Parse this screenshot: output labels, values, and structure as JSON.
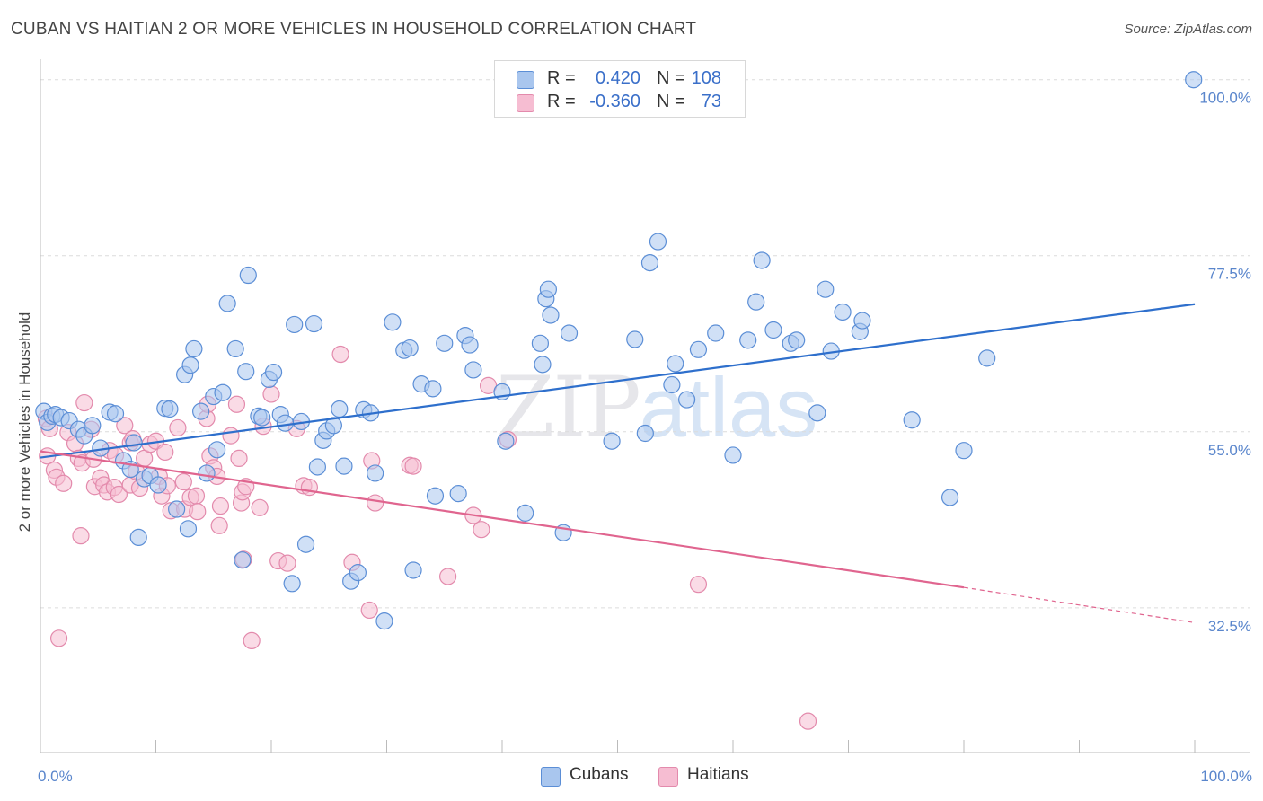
{
  "chart_data": {
    "type": "scatter",
    "title": "CUBAN VS HAITIAN 2 OR MORE VEHICLES IN HOUSEHOLD CORRELATION CHART",
    "source": "Source: ZipAtlas.com",
    "ylabel": "2 or more Vehicles in Household",
    "xlabel": "",
    "xlim": [
      0,
      100
    ],
    "ylim": [
      14,
      101
    ],
    "x_tick_labels": [
      "0.0%",
      "100.0%"
    ],
    "y_ticks": [
      {
        "value": 32.5,
        "label": "32.5%"
      },
      {
        "value": 55.0,
        "label": "55.0%"
      },
      {
        "value": 77.5,
        "label": "77.5%"
      },
      {
        "value": 100.0,
        "label": "100.0%"
      }
    ],
    "grid": true,
    "watermark": {
      "zip": "ZIP",
      "atlas": "atlas"
    },
    "stats": [
      {
        "r_label": "R =",
        "r_value": "0.420",
        "n_label": "N =",
        "n_value": "108"
      },
      {
        "r_label": "R =",
        "r_value": "-0.360",
        "n_label": "N =",
        "n_value": "73"
      }
    ],
    "legend": [
      "Cubans",
      "Haitians"
    ],
    "colors": {
      "cubans_fill": "#a9c6ee",
      "cubans_stroke": "#5b8ed6",
      "cubans_line": "#2e6fcc",
      "haitians_fill": "#f6bdd2",
      "haitians_stroke": "#e38aac",
      "haitians_line": "#e0658f"
    },
    "series": [
      {
        "name": "Cubans",
        "trend": {
          "x0": 0,
          "y0": 51.7,
          "x1": 100,
          "y1": 71.3
        },
        "points": [
          [
            0.3,
            57.6
          ],
          [
            0.6,
            56.2
          ],
          [
            1.0,
            57.0
          ],
          [
            1.3,
            57.2
          ],
          [
            1.8,
            56.8
          ],
          [
            2.5,
            56.4
          ],
          [
            3.3,
            55.3
          ],
          [
            3.8,
            54.5
          ],
          [
            4.5,
            55.8
          ],
          [
            5.2,
            52.9
          ],
          [
            6.0,
            57.5
          ],
          [
            6.5,
            57.3
          ],
          [
            7.2,
            51.3
          ],
          [
            7.8,
            50.2
          ],
          [
            8.1,
            53.6
          ],
          [
            8.5,
            41.5
          ],
          [
            9.0,
            49.0
          ],
          [
            9.5,
            49.4
          ],
          [
            10.2,
            48.2
          ],
          [
            10.8,
            58.0
          ],
          [
            11.2,
            57.9
          ],
          [
            11.8,
            45.1
          ],
          [
            12.5,
            62.3
          ],
          [
            12.8,
            42.6
          ],
          [
            13.0,
            63.5
          ],
          [
            13.3,
            65.6
          ],
          [
            13.9,
            57.6
          ],
          [
            14.4,
            49.7
          ],
          [
            15.0,
            59.5
          ],
          [
            15.3,
            52.7
          ],
          [
            15.8,
            60.0
          ],
          [
            16.2,
            71.4
          ],
          [
            16.9,
            65.6
          ],
          [
            17.5,
            38.6
          ],
          [
            17.8,
            62.7
          ],
          [
            18.0,
            75.0
          ],
          [
            18.9,
            57.0
          ],
          [
            19.2,
            56.8
          ],
          [
            19.8,
            61.7
          ],
          [
            20.2,
            62.6
          ],
          [
            20.8,
            57.2
          ],
          [
            21.2,
            56.1
          ],
          [
            21.8,
            35.6
          ],
          [
            22.0,
            68.7
          ],
          [
            22.6,
            56.3
          ],
          [
            23.0,
            40.6
          ],
          [
            23.7,
            68.8
          ],
          [
            24.0,
            50.5
          ],
          [
            24.5,
            53.9
          ],
          [
            24.8,
            55.1
          ],
          [
            25.4,
            55.8
          ],
          [
            25.9,
            57.9
          ],
          [
            26.3,
            50.6
          ],
          [
            26.9,
            35.9
          ],
          [
            27.5,
            37.0
          ],
          [
            28.0,
            57.8
          ],
          [
            28.6,
            57.4
          ],
          [
            29.0,
            49.7
          ],
          [
            29.8,
            30.8
          ],
          [
            30.5,
            69.0
          ],
          [
            31.5,
            65.4
          ],
          [
            32.0,
            65.7
          ],
          [
            32.3,
            37.3
          ],
          [
            33.0,
            61.1
          ],
          [
            34.0,
            60.5
          ],
          [
            34.2,
            46.8
          ],
          [
            35.0,
            66.3
          ],
          [
            36.2,
            47.1
          ],
          [
            36.8,
            67.3
          ],
          [
            37.2,
            66.1
          ],
          [
            37.5,
            62.9
          ],
          [
            40.0,
            60.1
          ],
          [
            40.3,
            53.8
          ],
          [
            42.0,
            44.6
          ],
          [
            43.3,
            66.3
          ],
          [
            43.5,
            63.6
          ],
          [
            43.8,
            72.0
          ],
          [
            44.0,
            73.2
          ],
          [
            44.2,
            69.9
          ],
          [
            45.3,
            42.1
          ],
          [
            45.8,
            67.6
          ],
          [
            49.5,
            53.8
          ],
          [
            51.5,
            66.8
          ],
          [
            52.4,
            54.8
          ],
          [
            52.8,
            76.6
          ],
          [
            53.5,
            79.3
          ],
          [
            54.7,
            61.0
          ],
          [
            55.0,
            63.7
          ],
          [
            56.0,
            59.1
          ],
          [
            57.0,
            65.5
          ],
          [
            58.5,
            67.6
          ],
          [
            60.0,
            52.0
          ],
          [
            61.3,
            66.7
          ],
          [
            62.0,
            71.6
          ],
          [
            62.5,
            76.9
          ],
          [
            63.5,
            68.0
          ],
          [
            65.0,
            66.3
          ],
          [
            65.5,
            66.7
          ],
          [
            67.3,
            57.4
          ],
          [
            68.0,
            73.2
          ],
          [
            68.5,
            65.3
          ],
          [
            69.5,
            70.3
          ],
          [
            71.0,
            67.8
          ],
          [
            71.2,
            69.2
          ],
          [
            75.5,
            56.5
          ],
          [
            78.8,
            46.6
          ],
          [
            80.0,
            52.6
          ],
          [
            82.0,
            64.4
          ],
          [
            99.9,
            100.0
          ]
        ]
      },
      {
        "name": "Haitians",
        "trend": {
          "x0": 0,
          "y0": 52.5,
          "x1": 80,
          "y1": 35.1
        },
        "trend_dashed": {
          "x0": 80,
          "y0": 35.1,
          "x1": 100,
          "y1": 30.6
        },
        "points": [
          [
            0.5,
            56.7
          ],
          [
            0.6,
            51.9
          ],
          [
            0.8,
            55.4
          ],
          [
            1.2,
            50.1
          ],
          [
            1.4,
            49.2
          ],
          [
            1.6,
            28.6
          ],
          [
            2.0,
            48.4
          ],
          [
            2.4,
            54.9
          ],
          [
            3.0,
            53.5
          ],
          [
            3.3,
            51.6
          ],
          [
            3.5,
            41.7
          ],
          [
            3.6,
            51.0
          ],
          [
            3.8,
            58.7
          ],
          [
            4.4,
            55.3
          ],
          [
            4.6,
            51.5
          ],
          [
            4.7,
            48.0
          ],
          [
            5.2,
            49.1
          ],
          [
            5.5,
            48.2
          ],
          [
            5.8,
            47.3
          ],
          [
            6.0,
            52.6
          ],
          [
            6.4,
            47.9
          ],
          [
            6.5,
            52.0
          ],
          [
            6.8,
            47.0
          ],
          [
            7.3,
            55.8
          ],
          [
            7.8,
            53.6
          ],
          [
            7.8,
            48.2
          ],
          [
            8.0,
            54.1
          ],
          [
            8.3,
            49.9
          ],
          [
            8.6,
            47.8
          ],
          [
            9.0,
            51.6
          ],
          [
            9.5,
            53.4
          ],
          [
            10.0,
            53.8
          ],
          [
            10.3,
            49.3
          ],
          [
            10.5,
            46.8
          ],
          [
            10.8,
            52.4
          ],
          [
            11.0,
            48.1
          ],
          [
            11.3,
            44.9
          ],
          [
            11.9,
            55.5
          ],
          [
            12.4,
            48.6
          ],
          [
            12.5,
            45.1
          ],
          [
            13.0,
            46.6
          ],
          [
            13.5,
            46.8
          ],
          [
            13.6,
            44.8
          ],
          [
            14.4,
            56.7
          ],
          [
            14.5,
            58.5
          ],
          [
            14.7,
            51.9
          ],
          [
            15.0,
            50.4
          ],
          [
            15.3,
            49.3
          ],
          [
            15.5,
            43.0
          ],
          [
            15.6,
            45.5
          ],
          [
            16.5,
            54.5
          ],
          [
            17.0,
            58.5
          ],
          [
            17.2,
            51.6
          ],
          [
            17.4,
            45.9
          ],
          [
            17.5,
            47.3
          ],
          [
            17.6,
            38.7
          ],
          [
            17.8,
            48.0
          ],
          [
            18.3,
            28.3
          ],
          [
            19.0,
            45.3
          ],
          [
            19.3,
            55.7
          ],
          [
            20.0,
            59.8
          ],
          [
            20.6,
            38.5
          ],
          [
            21.4,
            38.2
          ],
          [
            22.2,
            55.4
          ],
          [
            22.8,
            48.1
          ],
          [
            23.3,
            47.9
          ],
          [
            26.0,
            64.9
          ],
          [
            27.0,
            38.3
          ],
          [
            28.5,
            32.2
          ],
          [
            28.7,
            51.3
          ],
          [
            29.0,
            45.9
          ],
          [
            32.0,
            50.7
          ],
          [
            32.3,
            50.6
          ],
          [
            35.3,
            36.5
          ],
          [
            37.5,
            44.3
          ],
          [
            38.2,
            42.5
          ],
          [
            38.8,
            60.9
          ],
          [
            40.5,
            54.0
          ],
          [
            57.0,
            35.5
          ],
          [
            66.5,
            18.0
          ]
        ]
      }
    ]
  }
}
